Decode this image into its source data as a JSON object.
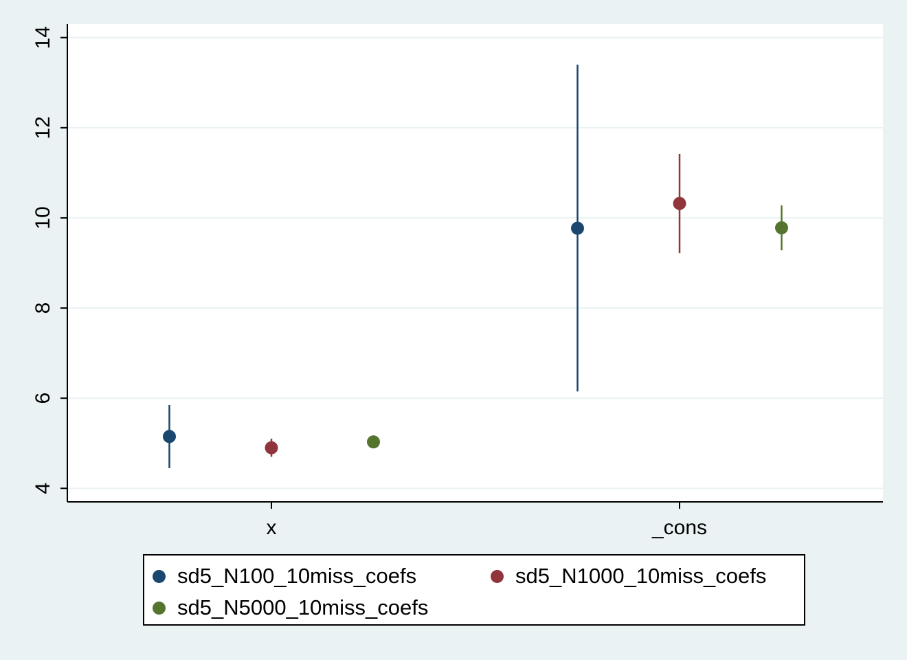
{
  "chart_data": {
    "type": "scatter",
    "categories": [
      "x",
      "_cons"
    ],
    "y_ticks": [
      "4",
      "6",
      "8",
      "10",
      "12",
      "14"
    ],
    "ylim": [
      3.7,
      14.3
    ],
    "grid": true,
    "legend_position": "bottom",
    "series": [
      {
        "name": "sd5_N100_10miss_coefs",
        "color": "#1a476f",
        "points": [
          {
            "category": "x",
            "estimate": 5.15,
            "lower": 4.45,
            "upper": 5.85
          },
          {
            "category": "_cons",
            "estimate": 9.77,
            "lower": 6.15,
            "upper": 13.4
          }
        ]
      },
      {
        "name": "sd5_N1000_10miss_coefs",
        "color": "#90353b",
        "points": [
          {
            "category": "x",
            "estimate": 4.9,
            "lower": 4.7,
            "upper": 5.1
          },
          {
            "category": "_cons",
            "estimate": 10.32,
            "lower": 9.22,
            "upper": 11.42
          }
        ]
      },
      {
        "name": "sd5_N5000_10miss_coefs",
        "color": "#55752f",
        "points": [
          {
            "category": "x",
            "estimate": 5.03,
            "lower": 4.98,
            "upper": 5.08
          },
          {
            "category": "_cons",
            "estimate": 9.78,
            "lower": 9.28,
            "upper": 10.28
          }
        ]
      }
    ]
  }
}
